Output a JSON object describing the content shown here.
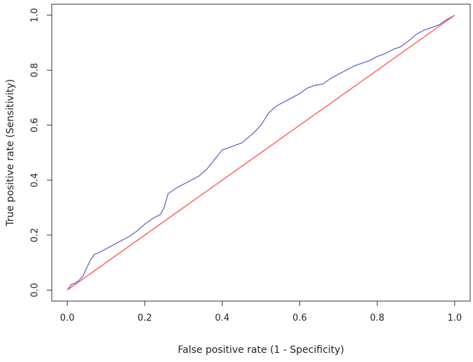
{
  "chart_data": {
    "type": "line",
    "title": "",
    "xlabel": "False positive rate (1 - Specificity)",
    "ylabel": "True positive rate (Sensitivity)",
    "xlim": [
      -0.04,
      1.04
    ],
    "ylim": [
      -0.04,
      1.04
    ],
    "xticks": [
      0,
      0.2,
      0.4,
      0.6,
      0.8,
      1
    ],
    "yticks": [
      0,
      0.2,
      0.4,
      0.6,
      0.8,
      1
    ],
    "xtick_labels": [
      "0.0",
      "0.2",
      "0.4",
      "0.6",
      "0.8",
      "1.0"
    ],
    "ytick_labels": [
      "0.0",
      "0.2",
      "0.4",
      "0.6",
      "0.8",
      "1.0"
    ],
    "grid": false,
    "legend": "none",
    "series": [
      {
        "color": "#6666cc",
        "x": [
          0,
          0.005,
          0.01,
          0.02,
          0.03,
          0.04,
          0.05,
          0.06,
          0.07,
          0.08,
          0.1,
          0.12,
          0.14,
          0.16,
          0.18,
          0.2,
          0.22,
          0.24,
          0.25,
          0.26,
          0.28,
          0.3,
          0.32,
          0.34,
          0.36,
          0.38,
          0.4,
          0.42,
          0.45,
          0.48,
          0.5,
          0.52,
          0.54,
          0.56,
          0.58,
          0.6,
          0.62,
          0.64,
          0.66,
          0.68,
          0.7,
          0.72,
          0.74,
          0.76,
          0.78,
          0.8,
          0.82,
          0.84,
          0.86,
          0.88,
          0.9,
          0.92,
          0.94,
          0.96,
          0.98,
          1.0
        ],
        "y": [
          0,
          0.01,
          0.02,
          0.025,
          0.035,
          0.05,
          0.08,
          0.11,
          0.13,
          0.135,
          0.15,
          0.165,
          0.18,
          0.195,
          0.215,
          0.24,
          0.26,
          0.275,
          0.3,
          0.35,
          0.37,
          0.385,
          0.4,
          0.415,
          0.44,
          0.475,
          0.51,
          0.52,
          0.535,
          0.57,
          0.6,
          0.645,
          0.67,
          0.685,
          0.7,
          0.715,
          0.735,
          0.745,
          0.75,
          0.77,
          0.785,
          0.8,
          0.815,
          0.825,
          0.835,
          0.85,
          0.86,
          0.875,
          0.885,
          0.905,
          0.93,
          0.945,
          0.955,
          0.965,
          0.985,
          1.0
        ]
      },
      {
        "color": "#ff6b6b",
        "x": [
          0,
          1
        ],
        "y": [
          0,
          1
        ]
      }
    ]
  }
}
